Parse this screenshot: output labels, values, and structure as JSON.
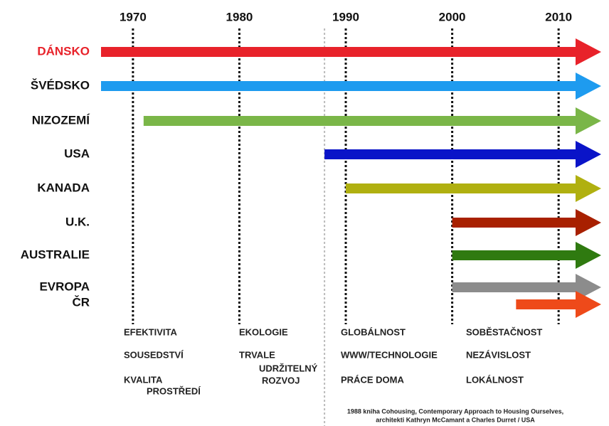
{
  "chart_data": {
    "type": "timeline",
    "categories": [
      "DÁNSKO",
      "ŠVÉDSKO",
      "NIZOZEMÍ",
      "USA",
      "KANADA",
      "U.K.",
      "AUSTRALIE",
      "EVROPA",
      "ČR"
    ],
    "values": [
      1967,
      1967,
      1971,
      1988,
      1990,
      2000,
      2000,
      2000,
      2006
    ],
    "colors": [
      "#e8222a",
      "#1e9bef",
      "#7ab648",
      "#0a14c8",
      "#b0b010",
      "#a82000",
      "#2f7a10",
      "#8c8c8c",
      "#ee4a1a"
    ],
    "xlim": [
      1967,
      2014
    ],
    "xticks": [
      1970,
      1980,
      1990,
      2000,
      2010
    ],
    "marker_year": 1988,
    "notes": [
      [
        "EFEKTIVITA",
        "SOUSEDSTVÍ",
        "KVALITA",
        "PROSTŘEDÍ"
      ],
      [
        "EKOLOGIE",
        "TRVALE",
        "UDRŽITELNÝ",
        "ROZVOJ"
      ],
      [
        "GLOBÁLNOST",
        "WWW/TECHNOLOGIE",
        "PRÁCE DOMA"
      ],
      [
        "SOBĚSTAČNOST",
        "NEZÁVISLOST",
        "LOKÁLNOST"
      ]
    ],
    "footnote": [
      "1988 kniha  Cohousing, Contemporary  Approach to Housing Ourselves,",
      "architekti Kathryn McCamant a Charles Durret / USA"
    ]
  }
}
